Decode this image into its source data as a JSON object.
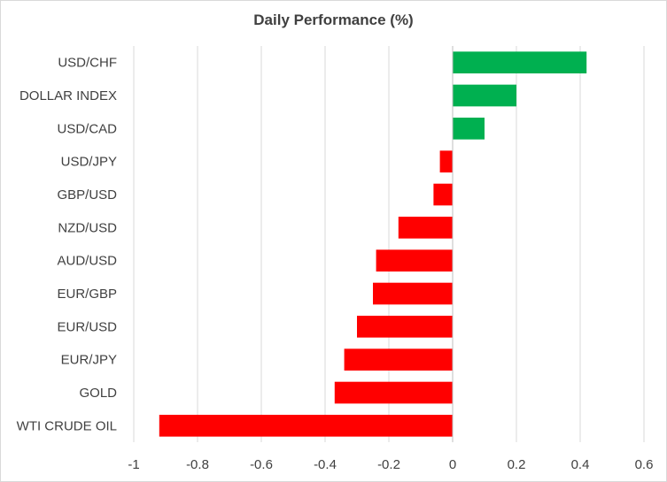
{
  "chart_data": {
    "type": "bar",
    "orientation": "horizontal",
    "title": "Daily Performance (%)",
    "xlabel": "",
    "ylabel": "",
    "xlim": [
      -1,
      0.6
    ],
    "xticks": [
      -1,
      -0.8,
      -0.6,
      -0.4,
      -0.2,
      0,
      0.2,
      0.4,
      0.6
    ],
    "xtick_labels": [
      "-1",
      "-0.8",
      "-0.6",
      "-0.4",
      "-0.2",
      "0",
      "0.2",
      "0.4",
      "0.6"
    ],
    "grid": true,
    "legend": "none",
    "categories": [
      "USD/CHF",
      "DOLLAR INDEX",
      "USD/CAD",
      "USD/JPY",
      "GBP/USD",
      "NZD/USD",
      "AUD/USD",
      "EUR/GBP",
      "EUR/USD",
      "EUR/JPY",
      "GOLD",
      "WTI CRUDE OIL"
    ],
    "values": [
      0.42,
      0.2,
      0.1,
      -0.04,
      -0.06,
      -0.17,
      -0.24,
      -0.25,
      -0.3,
      -0.34,
      -0.37,
      -0.92
    ],
    "colors": {
      "positive": "#00b050",
      "negative": "#ff0000",
      "grid": "#d9d9d9",
      "text": "#404040"
    }
  }
}
